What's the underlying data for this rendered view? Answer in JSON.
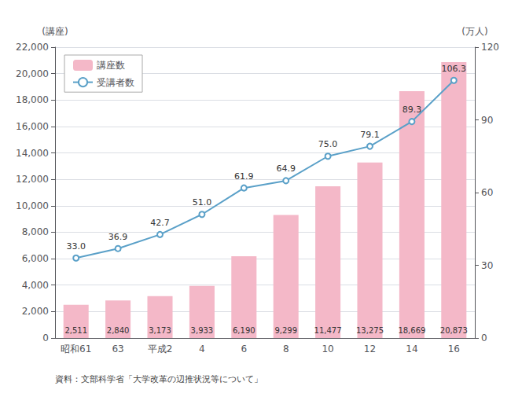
{
  "chart_data": {
    "type": "bar",
    "categories": [
      "昭和61",
      "63",
      "平成2",
      "4",
      "6",
      "8",
      "10",
      "12",
      "14",
      "16"
    ],
    "series": [
      {
        "name": "講座数",
        "type": "bar",
        "color": "#f4b8c8",
        "values": [
          2511,
          2840,
          3173,
          3933,
          6190,
          9299,
          11477,
          13275,
          18669,
          20873
        ],
        "value_labels": [
          "2,511",
          "2,840",
          "3,173",
          "3,933",
          "6,190",
          "9,299",
          "11,477",
          "13,275",
          "18,669",
          "20,873"
        ]
      },
      {
        "name": "受講者数",
        "type": "line",
        "axis": "y2",
        "color": "#5aA0c8",
        "marker": "circle",
        "values": [
          33.0,
          36.9,
          42.7,
          51.0,
          61.9,
          64.9,
          75.0,
          79.1,
          89.3,
          106.3
        ],
        "value_labels": [
          "33.0",
          "36.9",
          "42.7",
          "51.0",
          "61.9",
          "64.9",
          "75.0",
          "79.1",
          "89.3",
          "106.3"
        ]
      }
    ],
    "ylabel": "(講座)",
    "y2label": "(万人)",
    "ylim": [
      0,
      22000
    ],
    "yticks": [
      0,
      {
        "value": 2000,
        "label": "2,000"
      },
      {
        "value": 4000,
        "label": "4,000"
      },
      {
        "value": 6000,
        "label": "6,000"
      },
      {
        "value": 8000,
        "label": "8,000"
      },
      {
        "value": 10000,
        "label": "10,000"
      },
      {
        "value": 12000,
        "label": "12,000"
      },
      {
        "value": 14000,
        "label": "14,000"
      },
      {
        "value": 16000,
        "label": "16,000"
      },
      {
        "value": 18000,
        "label": "18,000"
      },
      {
        "value": 20000,
        "label": "20,000"
      },
      {
        "value": 22000,
        "label": "22,000"
      }
    ],
    "y2lim": [
      0,
      120
    ],
    "y2ticks": [
      0,
      30,
      60,
      90,
      120
    ],
    "grid": true,
    "legend": "upper left",
    "data_labels": true,
    "source": "資料：文部科学省「大学改革の辺推状況等について」"
  }
}
